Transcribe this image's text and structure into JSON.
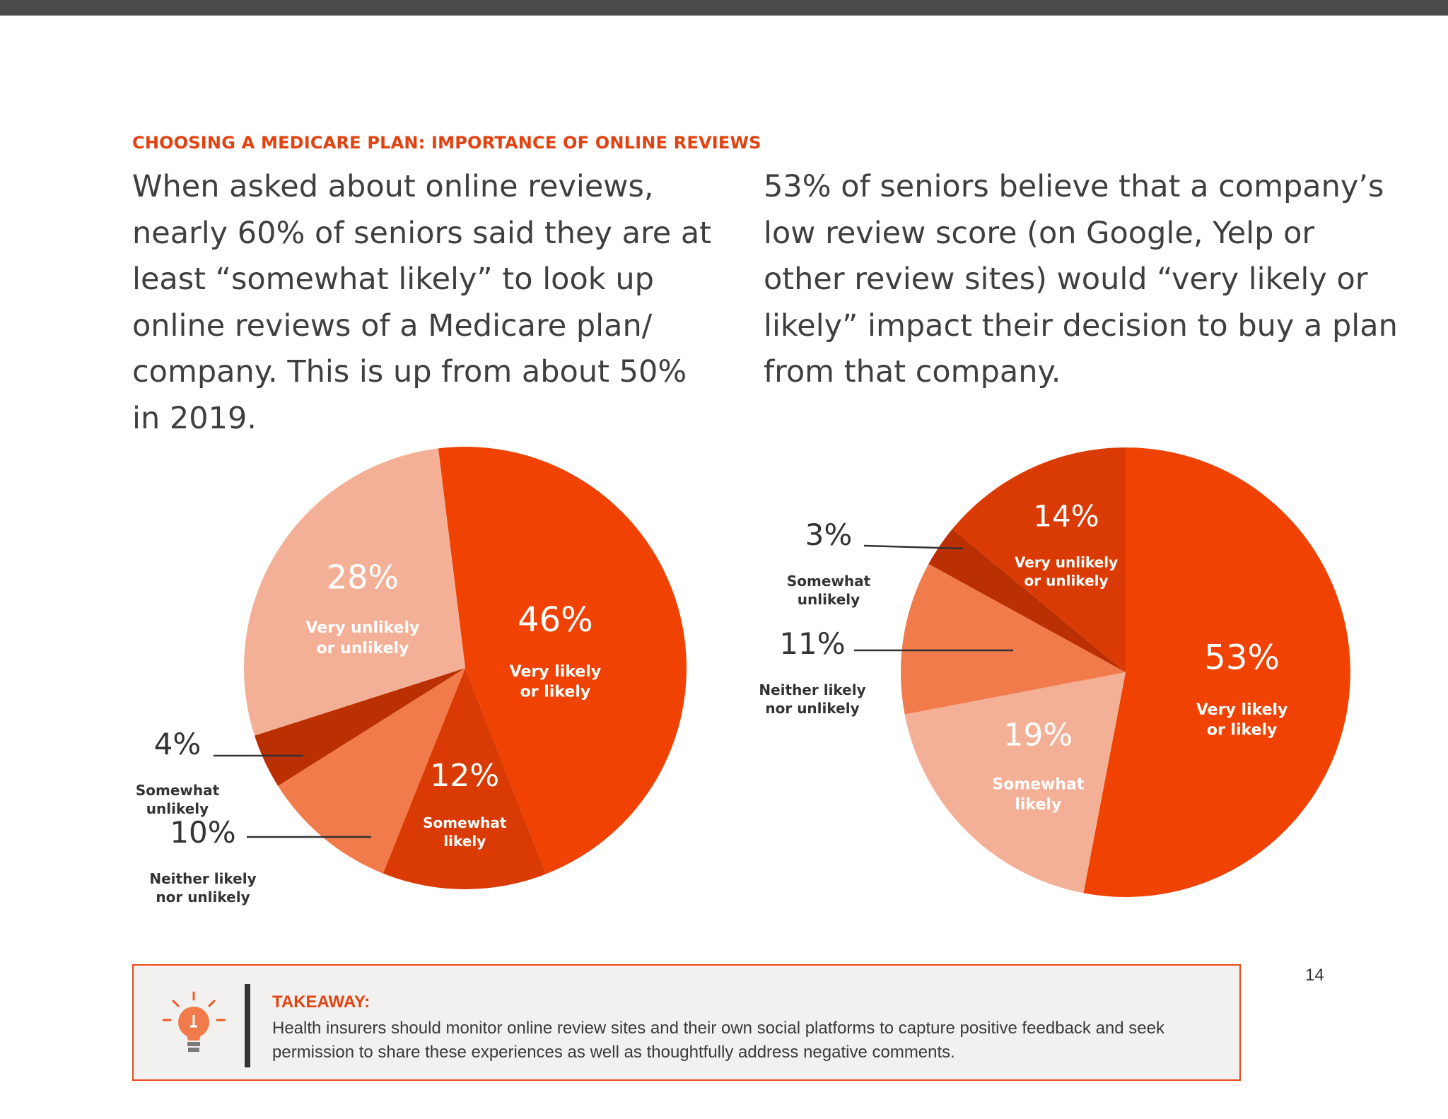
{
  "section_heading": "CHOOSING A MEDICARE PLAN: IMPORTANCE OF ONLINE REVIEWS",
  "intro_left": "When asked about online reviews, nearly 60% of seniors said they are at least “somewhat likely” to look up online reviews of a Medicare plan/ company. This is up from about 50% in 2019.",
  "intro_right": "53% of seniors believe that a company’s low review score (on Google, Yelp or other review sites) would “very likely or likely” impact their decision to buy a plan from that company.",
  "chart_data": [
    {
      "type": "pie",
      "title": "",
      "slices": [
        {
          "pct_label": "46%",
          "value": 46,
          "label_lines": [
            "Very likely",
            "or likely"
          ],
          "color": "#f04202"
        },
        {
          "pct_label": "12%",
          "value": 12,
          "label_lines": [
            "Somewhat",
            "likely"
          ],
          "color": "#da3b05"
        },
        {
          "pct_label": "10%",
          "value": 10,
          "label_lines": [
            "Neither likely",
            "nor unlikely"
          ],
          "color": "#f27b4c"
        },
        {
          "pct_label": "4%",
          "value": 4,
          "label_lines": [
            "Somewhat",
            "unlikely"
          ],
          "color": "#bb3002"
        },
        {
          "pct_label": "28%",
          "value": 28,
          "label_lines": [
            "Very unlikely",
            "or unlikely"
          ],
          "color": "#f4b096"
        }
      ]
    },
    {
      "type": "pie",
      "title": "",
      "slices": [
        {
          "pct_label": "53%",
          "value": 53,
          "label_lines": [
            "Very likely",
            "or likely"
          ],
          "color": "#f04202"
        },
        {
          "pct_label": "19%",
          "value": 19,
          "label_lines": [
            "Somewhat",
            "likely"
          ],
          "color": "#f4b096"
        },
        {
          "pct_label": "11%",
          "value": 11,
          "label_lines": [
            "Neither likely",
            "nor unlikely"
          ],
          "color": "#f27b4c"
        },
        {
          "pct_label": "3%",
          "value": 3,
          "label_lines": [
            "Somewhat",
            "unlikely"
          ],
          "color": "#bb3002"
        },
        {
          "pct_label": "14%",
          "value": 14,
          "label_lines": [
            "Very unlikely",
            "or unlikely"
          ],
          "color": "#da3b05"
        }
      ]
    }
  ],
  "callout": {
    "icon": "lightbulb-icon",
    "label": "TAKEAWAY:",
    "text": "Health insurers should monitor online review sites and their own social platforms to capture positive feedback and seek permission to share these experiences as well as thoughtfully address negative comments."
  },
  "page_number": "14",
  "colors": {
    "accent": "#e24210",
    "top_bar": "#4a4a4a",
    "callout_bg": "#f2f1ef"
  }
}
